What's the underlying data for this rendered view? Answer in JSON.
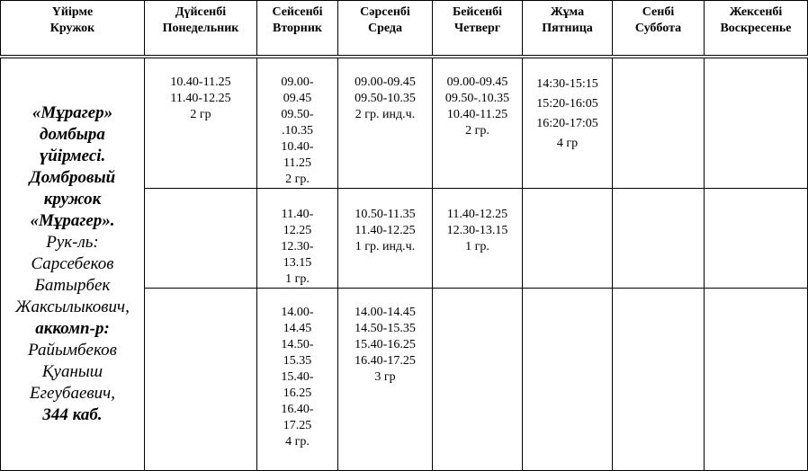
{
  "header": [
    [
      "Үйірме",
      "Кружок"
    ],
    [
      "Дүйсенбі",
      "Понедельник"
    ],
    [
      "Сейсенбі",
      "Вторник"
    ],
    [
      "Сәрсенбі",
      "Среда"
    ],
    [
      "Бейсенбі",
      "Четверг"
    ],
    [
      "Жұма",
      "Пятница"
    ],
    [
      "Сенбі",
      "Суббота"
    ],
    [
      "Жексенбі",
      "Воскресенье"
    ]
  ],
  "circle": [
    {
      "bold": true,
      "lines": [
        "«Мұрагер»",
        "домбыра",
        "үйірмесі.",
        "Домбровый",
        "кружок",
        "«Мұрагер»."
      ]
    },
    {
      "bold": false,
      "lines": [
        "Рук-ль:",
        "Сарсебеков",
        "Батырбек",
        "Жаксылыкович,"
      ]
    },
    {
      "bold": true,
      "lines": [
        "аккомп-р:"
      ]
    },
    {
      "bold": false,
      "lines": [
        "Райымбеков",
        "Қуаныш",
        "Егеубаевич,"
      ]
    },
    {
      "bold": true,
      "lines": [
        "344 каб."
      ]
    }
  ],
  "slots": [
    [
      [
        "10.40-11.25",
        "11.40-12.25",
        "2 гр"
      ],
      [
        "09.00-",
        "09.45",
        "09.50-",
        ".10.35",
        "10.40-",
        "11.25",
        "2 гр."
      ],
      [
        "09.00-09.45",
        "09.50-10.35",
        "2 гр. инд.ч."
      ],
      [
        "09.00-09.45",
        "09.50-.10.35",
        "10.40-11.25",
        "2 гр."
      ],
      [
        "14:30-15:15",
        "15:20-16:05",
        "16:20-17:05",
        "4 гр"
      ],
      [],
      []
    ],
    [
      [],
      [
        "11.40-",
        "12.25",
        "12.30-",
        "13.15",
        "1 гр."
      ],
      [
        "10.50-11.35",
        "11.40-12.25",
        "1 гр. инд.ч."
      ],
      [
        "11.40-12.25",
        "12.30-13.15",
        "1 гр."
      ],
      [],
      [],
      []
    ],
    [
      [],
      [
        "14.00-",
        "14.45",
        "14.50-",
        "15.35",
        "15.40-",
        "16.25",
        "16.40-",
        "17.25",
        "4 гр."
      ],
      [
        "14.00-14.45",
        "14.50-15.35",
        "15.40-16.25",
        "16.40-17.25",
        "3 гр"
      ],
      [],
      [],
      [],
      []
    ]
  ]
}
